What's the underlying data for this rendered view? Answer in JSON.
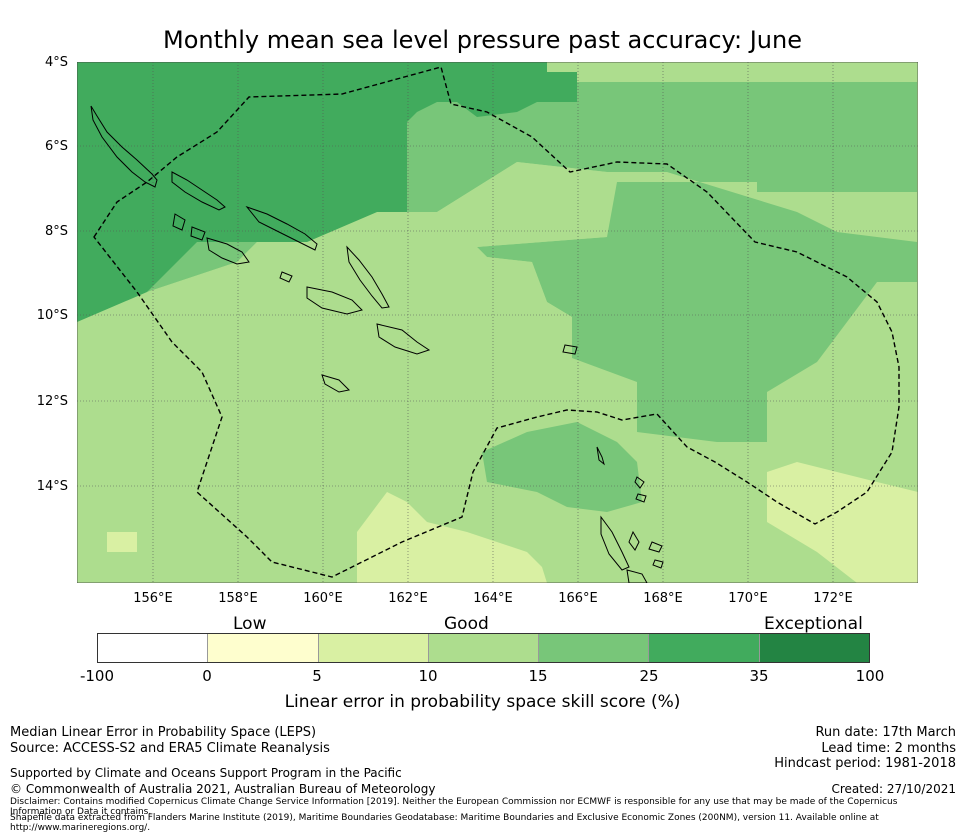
{
  "title": "Monthly mean sea level pressure past accuracy: June",
  "map": {
    "lat_labels": [
      "4°S",
      "6°S",
      "8°S",
      "10°S",
      "12°S",
      "14°S"
    ],
    "lon_labels": [
      "156°E",
      "158°E",
      "160°E",
      "162°E",
      "164°E",
      "166°E",
      "168°E",
      "170°E",
      "172°E"
    ],
    "colors": {
      "c0_5": "#fefece",
      "c5_10": "#d9f0a3",
      "c10_15": "#addd8e",
      "c15_25": "#78c679",
      "c25_35": "#41ab5d",
      "c35_100": "#238443",
      "coast": "#000000",
      "eez": "#000000",
      "grid": "#555555"
    }
  },
  "colorbar": {
    "category_labels": [
      "Low",
      "Good",
      "Exceptional"
    ],
    "ticks": [
      "-100",
      "0",
      "5",
      "10",
      "15",
      "25",
      "35",
      "100"
    ],
    "colors": [
      "#ffffff",
      "#fefece",
      "#d9f0a3",
      "#addd8e",
      "#78c679",
      "#41ab5d",
      "#238443"
    ],
    "title": "Linear error in probability space skill score (%)"
  },
  "footer": {
    "left_line1": "Median Linear Error in Probability Space (LEPS)",
    "left_line2": "Source: ACCESS-S2 and ERA5 Climate Reanalysis",
    "supported": "Supported by Climate and Oceans Support Program in the Pacific",
    "copyright": "© Commonwealth of Australia 2021, Australian Bureau of Meteorology",
    "disclaimer": "Disclaimer: Contains modified Copernicus Climate Change Service Information [2019]. Neither the European Commission nor ECMWF is responsible for any use that may be made of the Copernicus Information or Data it contains.",
    "shapefile": "Shapefile data extracted from Flanders Marine Institute (2019), Maritime Boundaries Geodatabase: Maritime Boundaries and Exclusive Economic Zones (200NM), version 11. Available online at http://www.marineregions.org/.",
    "run_date": "Run date: 17th March",
    "lead_time": "Lead time: 2 months",
    "hindcast": "Hindcast period: 1981-2018",
    "created": "Created: 27/10/2021"
  }
}
